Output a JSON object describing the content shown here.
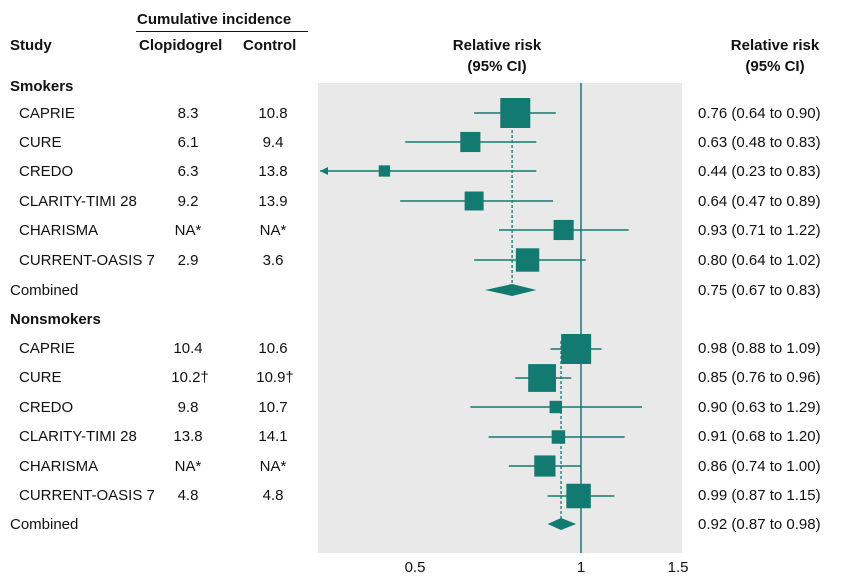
{
  "header": {
    "study": "Study",
    "cumulative": "Cumulative incidence",
    "clopidogrel": "Clopidogrel",
    "control": "Control",
    "rr_center_line1": "Relative risk",
    "rr_center_line2": "(95% CI)",
    "rr_right_line1": "Relative risk",
    "rr_right_line2": "(95% CI)"
  },
  "groups": [
    {
      "name": "Smokers",
      "combined_label": "Combined",
      "studies": [
        {
          "study": "CAPRIE",
          "clopidogrel": "8.3",
          "control": "10.8",
          "rr_text": "0.76 (0.64 to 0.90)"
        },
        {
          "study": "CURE",
          "clopidogrel": "6.1",
          "control": "9.4",
          "rr_text": "0.63 (0.48 to 0.83)"
        },
        {
          "study": "CREDO",
          "clopidogrel": "6.3",
          "control": "13.8",
          "rr_text": "0.44 (0.23 to 0.83)"
        },
        {
          "study": "CLARITY-TIMI 28",
          "clopidogrel": "9.2",
          "control": "13.9",
          "rr_text": "0.64 (0.47 to 0.89)"
        },
        {
          "study": "CHARISMA",
          "clopidogrel": "NA*",
          "control": "NA*",
          "rr_text": "0.93 (0.71 to 1.22)"
        },
        {
          "study": "CURRENT-OASIS 7",
          "clopidogrel": "2.9",
          "control": "3.6",
          "rr_text": "0.80 (0.64 to 1.02)"
        }
      ],
      "combined_text": "0.75 (0.67 to 0.83)"
    },
    {
      "name": "Nonsmokers",
      "combined_label": "Combined",
      "studies": [
        {
          "study": "CAPRIE",
          "clopidogrel": "10.4",
          "control": "10.6",
          "rr_text": "0.98 (0.88 to 1.09)"
        },
        {
          "study": "CURE",
          "clopidogrel": "10.2†",
          "control": "10.9†",
          "rr_text": "0.85 (0.76 to 0.96)"
        },
        {
          "study": "CREDO",
          "clopidogrel": "9.8",
          "control": "10.7",
          "rr_text": "0.90 (0.63 to 1.29)"
        },
        {
          "study": "CLARITY-TIMI 28",
          "clopidogrel": "13.8",
          "control": "14.1",
          "rr_text": "0.91 (0.68 to 1.20)"
        },
        {
          "study": "CHARISMA",
          "clopidogrel": "NA*",
          "control": "NA*",
          "rr_text": "0.86 (0.74 to 1.00)"
        },
        {
          "study": "CURRENT-OASIS 7",
          "clopidogrel": "4.8",
          "control": "4.8",
          "rr_text": "0.99 (0.87 to 1.15)"
        }
      ],
      "combined_text": "0.92 (0.87 to 0.98)"
    }
  ],
  "chart_data": {
    "type": "forest",
    "x_scale": "log",
    "xlim": [
      0.4,
      1.5
    ],
    "x_ticks": [
      "0.5",
      "1",
      "1.5"
    ],
    "x_tick_values": [
      0.5,
      1,
      1.5
    ],
    "reference_line": 1,
    "colors": {
      "marker": "#127a70",
      "panel": "#e9e9e9",
      "line": "#127a70"
    },
    "groups": [
      {
        "name": "Smokers",
        "rows": [
          {
            "label": "CAPRIE",
            "rr": 0.76,
            "lo": 0.64,
            "hi": 0.9,
            "weight": 1.0
          },
          {
            "label": "CURE",
            "rr": 0.63,
            "lo": 0.48,
            "hi": 0.83,
            "weight": 0.55
          },
          {
            "label": "CREDO",
            "rr": 0.44,
            "lo": 0.23,
            "hi": 0.83,
            "weight": 0.15
          },
          {
            "label": "CLARITY-TIMI 28",
            "rr": 0.64,
            "lo": 0.47,
            "hi": 0.89,
            "weight": 0.5
          },
          {
            "label": "CHARISMA",
            "rr": 0.93,
            "lo": 0.71,
            "hi": 1.22,
            "weight": 0.55
          },
          {
            "label": "CURRENT-OASIS 7",
            "rr": 0.8,
            "lo": 0.64,
            "hi": 1.02,
            "weight": 0.7
          }
        ],
        "combined": {
          "rr": 0.75,
          "lo": 0.67,
          "hi": 0.83
        }
      },
      {
        "name": "Nonsmokers",
        "rows": [
          {
            "label": "CAPRIE",
            "rr": 0.98,
            "lo": 0.88,
            "hi": 1.09,
            "weight": 1.0
          },
          {
            "label": "CURE",
            "rr": 0.85,
            "lo": 0.76,
            "hi": 0.96,
            "weight": 0.9
          },
          {
            "label": "CREDO",
            "rr": 0.9,
            "lo": 0.63,
            "hi": 1.29,
            "weight": 0.2
          },
          {
            "label": "CLARITY-TIMI 28",
            "rr": 0.91,
            "lo": 0.68,
            "hi": 1.2,
            "weight": 0.25
          },
          {
            "label": "CHARISMA",
            "rr": 0.86,
            "lo": 0.74,
            "hi": 1.0,
            "weight": 0.6
          },
          {
            "label": "CURRENT-OASIS 7",
            "rr": 0.99,
            "lo": 0.87,
            "hi": 1.15,
            "weight": 0.75
          }
        ],
        "combined": {
          "rr": 0.92,
          "lo": 0.87,
          "hi": 0.98
        }
      }
    ]
  }
}
